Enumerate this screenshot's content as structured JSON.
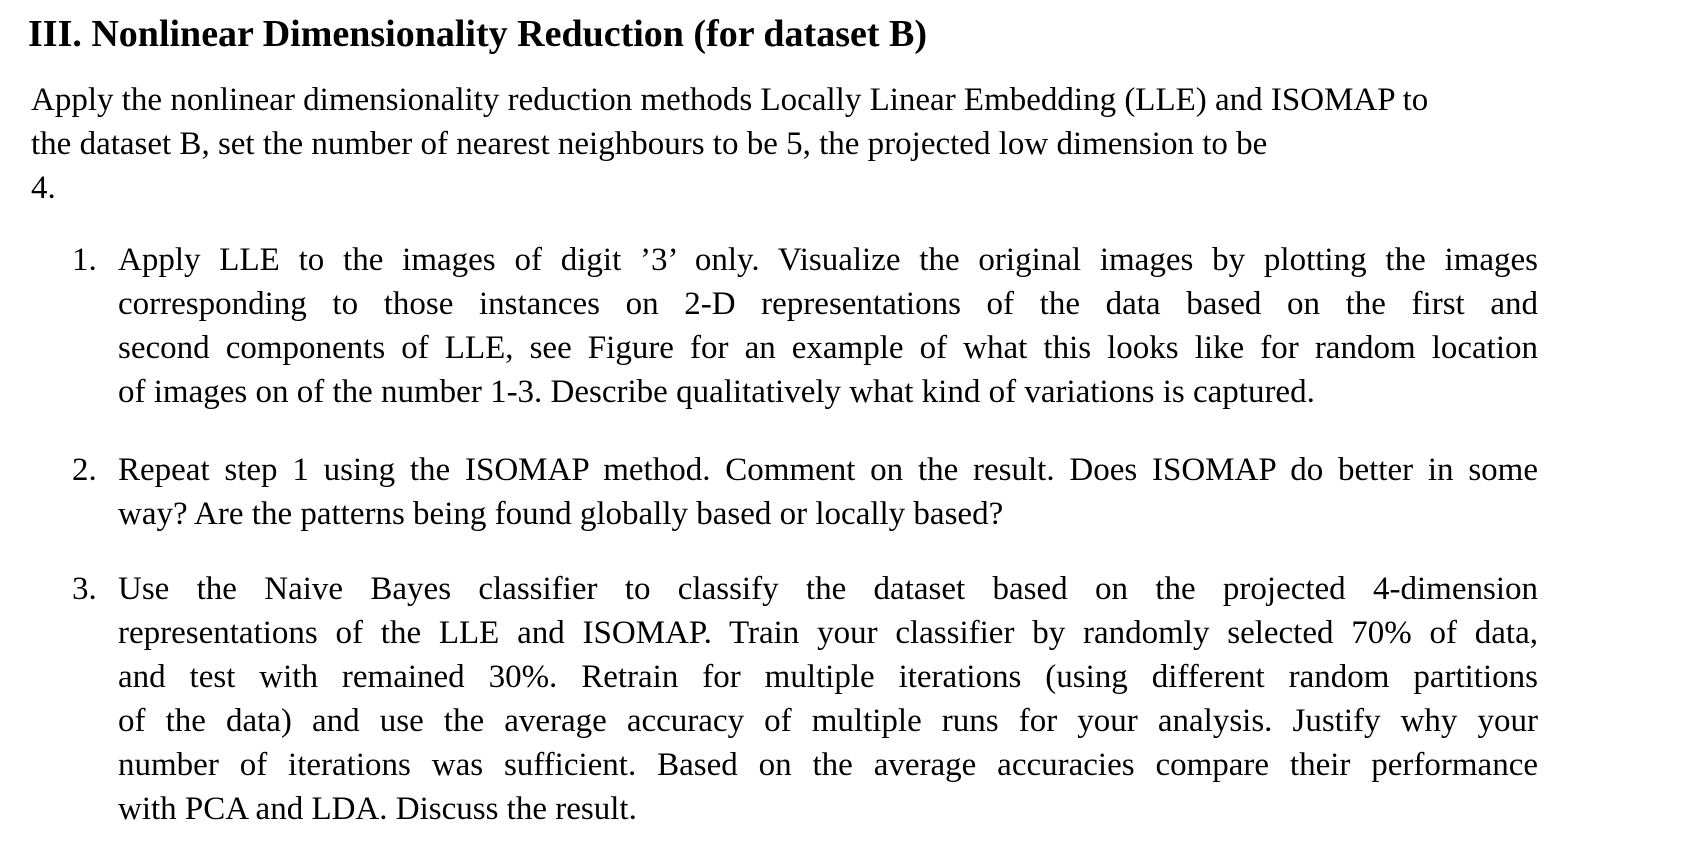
{
  "section": {
    "title": "III. Nonlinear Dimensionality Reduction (for dataset B)"
  },
  "intro": {
    "lines": [
      "Apply the nonlinear dimensionality reduction methods Locally Linear Embedding (LLE) and ISOMAP to",
      "the dataset B, set the number of nearest neighbours to be 5, the projected low dimension to be",
      "4."
    ]
  },
  "tasks": [
    {
      "number": "1.",
      "lines": [
        "Apply LLE to the images of digit ’3’ only. Visualize the original images by plotting the images",
        "corresponding to those instances on 2-D representations of the data based on the first and",
        "second components of LLE, see Figure for an example of what this looks like for random location",
        "of images on of the number 1-3. Describe qualitatively what kind of variations is captured."
      ]
    },
    {
      "number": "2.",
      "lines": [
        "Repeat step 1 using the ISOMAP method. Comment on the result. Does ISOMAP do better in some",
        "way? Are the patterns being found globally based or locally based?"
      ]
    },
    {
      "number": "3.",
      "lines": [
        "Use the Naive Bayes classifier to classify the dataset based on the projected 4-dimension",
        "representations of the LLE and ISOMAP. Train your classifier by randomly selected 70% of data,",
        "and test with remained 30%. Retrain for multiple iterations (using different random partitions",
        "of the data) and use the average accuracy of multiple runs for your analysis. Justify why your",
        "number of iterations was sufficient. Based on the average accuracies compare their performance",
        "with PCA and LDA. Discuss the result."
      ]
    }
  ]
}
